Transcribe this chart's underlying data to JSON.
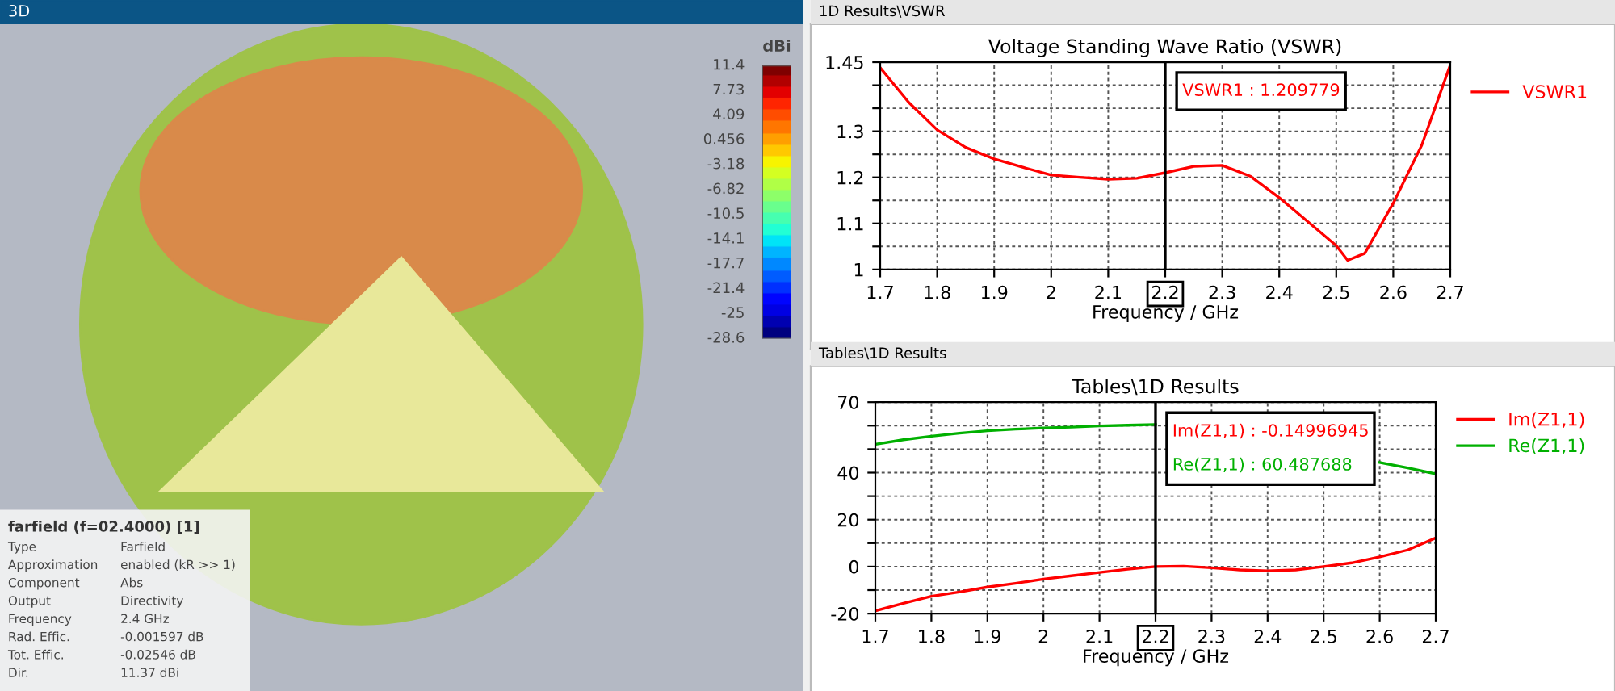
{
  "chart_data": [
    {
      "type": "other",
      "title": "3D",
      "clabel": "dBi",
      "annotations": [
        "11.4",
        "7.73",
        "4.09",
        "0.456",
        "-3.18",
        "-6.82",
        "-10.5",
        "-14.1",
        "-17.7",
        "-21.4",
        "-25",
        "-28.6"
      ]
    },
    {
      "type": "other",
      "annotations": [
        "farfield (f=02.4000) [1]",
        "Type",
        "Farfield",
        "Approximation",
        "enabled (kR >> 1)",
        "Component",
        "Abs",
        "Output",
        "Directivity",
        "Frequency",
        "2.4 GHz",
        "Rad. Effic.",
        "-0.001597 dB",
        "Tot. Effic.",
        "-0.02546 dB",
        "Dir.",
        "11.37 dBi"
      ]
    },
    {
      "type": "line",
      "subtitle": "1D Results\\VSWR",
      "title": "Voltage Standing Wave Ratio (VSWR)",
      "xlabel": "Frequency / GHz",
      "x": [
        1.7,
        1.75,
        1.8,
        1.85,
        1.9,
        1.95,
        2.0,
        2.05,
        2.1,
        2.15,
        2.2,
        2.25,
        2.3,
        2.35,
        2.4,
        2.45,
        2.5,
        2.52,
        2.55,
        2.6,
        2.65,
        2.7
      ],
      "series": [
        {
          "name": "VSWR1",
          "color": "#ff0000",
          "values": [
            1.438,
            1.363,
            1.303,
            1.265,
            1.24,
            1.222,
            1.205,
            1.2,
            1.196,
            1.198,
            1.21,
            1.224,
            1.226,
            1.202,
            1.156,
            1.104,
            1.052,
            1.02,
            1.035,
            1.144,
            1.27,
            1.444
          ]
        }
      ],
      "xlim": [
        1.7,
        2.7
      ],
      "xticks": [
        1.7,
        1.8,
        1.9,
        2,
        2.1,
        2.2,
        2.3,
        2.4,
        2.5,
        2.6,
        2.7
      ],
      "ylim": [
        1,
        1.45
      ],
      "yticks": [
        1,
        {
          "value": 1.05,
          "label": null
        },
        1.1,
        {
          "value": 1.15,
          "label": null
        },
        1.2,
        {
          "value": 1.25,
          "label": null
        },
        1.3,
        {
          "value": 1.35,
          "label": null
        },
        {
          "value": 1.4,
          "label": null
        },
        1.45
      ],
      "ref_lines": [
        {
          "axis": "x",
          "value": 2.2,
          "color": "#000000"
        }
      ],
      "annotations": [
        "VSWR1 : 1.209779"
      ],
      "grid": true,
      "legend": "right",
      "line_style": "solid",
      "marker": "none"
    },
    {
      "type": "line",
      "subtitle": "Tables\\1D Results",
      "title": "Tables\\1D Results",
      "xlabel": "Frequency / GHz",
      "x": [
        1.7,
        1.75,
        1.8,
        1.85,
        1.9,
        1.95,
        2.0,
        2.05,
        2.1,
        2.15,
        2.2,
        2.25,
        2.3,
        2.35,
        2.4,
        2.45,
        2.5,
        2.55,
        2.6,
        2.65,
        2.7
      ],
      "series": [
        {
          "name": "Im(Z1,1)",
          "color": "#ff0000",
          "values": [
            -18.8,
            -15.6,
            -12.6,
            -10.8,
            -8.7,
            -7.1,
            -5.3,
            -3.9,
            -2.5,
            -1.1,
            0,
            0.2,
            -0.5,
            -1.4,
            -1.8,
            -1.4,
            0,
            1.6,
            4.1,
            7.1,
            12.2
          ]
        },
        {
          "name": "Re(Z1,1)",
          "color": "#00b000",
          "values": [
            52.1,
            54,
            55.5,
            56.8,
            57.8,
            58.5,
            59,
            59.4,
            59.9,
            60.2,
            60.5,
            null,
            null,
            null,
            null,
            null,
            null,
            null,
            44.3,
            42,
            39.5
          ]
        }
      ],
      "xlim": [
        1.7,
        2.7
      ],
      "xticks": [
        1.7,
        1.8,
        1.9,
        2,
        2.1,
        2.2,
        2.3,
        2.4,
        2.5,
        2.6,
        2.7
      ],
      "ylim": [
        -20,
        70
      ],
      "yticks": [
        -20,
        {
          "value": -10,
          "label": null
        },
        0,
        {
          "value": 10,
          "label": null
        },
        20,
        {
          "value": 30,
          "label": null
        },
        40,
        {
          "value": 50,
          "label": null
        },
        {
          "value": 60,
          "label": null
        },
        70
      ],
      "ref_lines": [
        {
          "axis": "x",
          "value": 2.2,
          "color": "#000000"
        }
      ],
      "annotations": [
        "Im(Z1,1) : -0.14996945",
        "Re(Z1,1) : 60.487688"
      ],
      "grid": true,
      "legend": "right",
      "line_style": "solid",
      "marker": "none"
    }
  ]
}
